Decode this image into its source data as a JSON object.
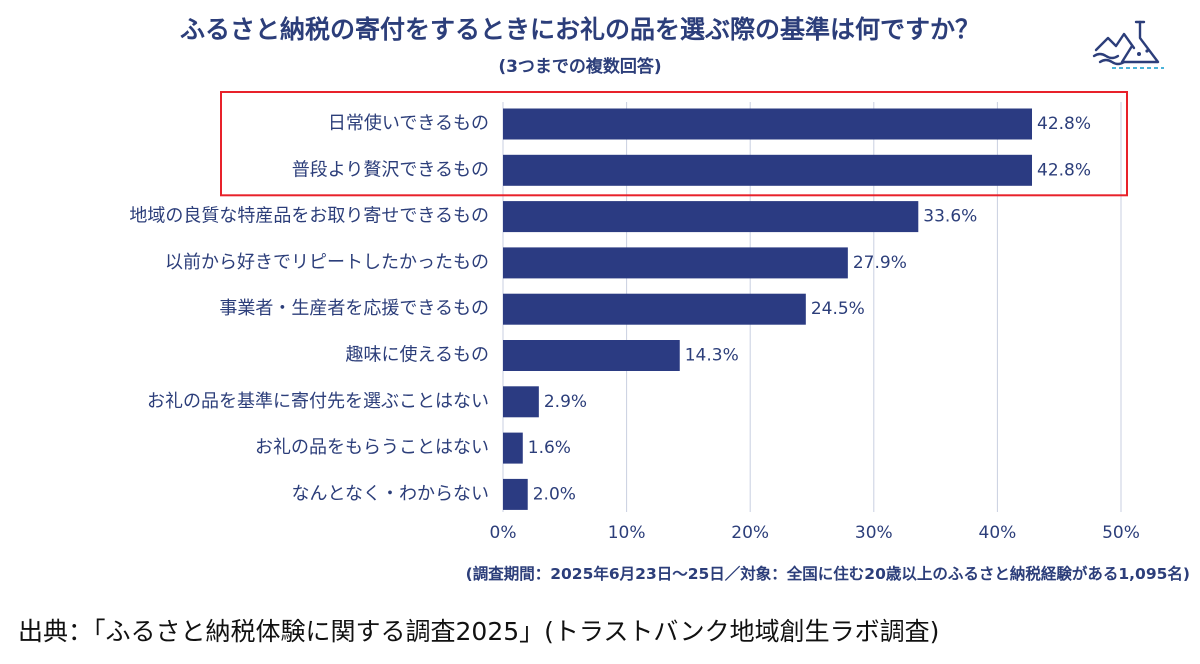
{
  "header": {
    "title": "ふるさと納税の寄付をするときにお礼の品を選ぶ際の基準は何ですか？",
    "subtitle": "(3つまでの複数回答)"
  },
  "colors": {
    "bar": "#2b3b82",
    "text": "#2c3e7a",
    "highlight_box": "#e8212a",
    "grid": "#c9cfe0"
  },
  "logo": {
    "icon": "flask-landscape-icon"
  },
  "chart_data": {
    "type": "bar",
    "orientation": "horizontal",
    "categories": [
      "日常使いできるもの",
      "普段より贅沢できるもの",
      "地域の良質な特産品をお取り寄せできるもの",
      "以前から好きでリピートしたかったもの",
      "事業者・生産者を応援できるもの",
      "趣味に使えるもの",
      "お礼の品を基準に寄付先を選ぶことはない",
      "お礼の品をもらうことはない",
      "なんとなく・わからない"
    ],
    "values": [
      42.8,
      42.8,
      33.6,
      27.9,
      24.5,
      14.3,
      2.9,
      1.6,
      2.0
    ],
    "value_labels": [
      "42.8%",
      "42.8%",
      "33.6%",
      "27.9%",
      "24.5%",
      "14.3%",
      "2.9%",
      "1.6%",
      "2.0%"
    ],
    "xlim": [
      0,
      50
    ],
    "x_ticks": [
      0,
      10,
      20,
      30,
      40,
      50
    ],
    "x_tick_labels": [
      "0%",
      "10%",
      "20%",
      "30%",
      "40%",
      "50%"
    ],
    "grid": true,
    "highlighted_categories": [
      0,
      1
    ]
  },
  "footer": {
    "note": "(調査期間：2025年6月23日〜25日／対象：全国に住む20歳以上のふるさと納税経験がある1,095名)",
    "source": "出典：「ふるさと納税体験に関する調査2025」(トラストバンク地域創生ラボ調査)"
  }
}
